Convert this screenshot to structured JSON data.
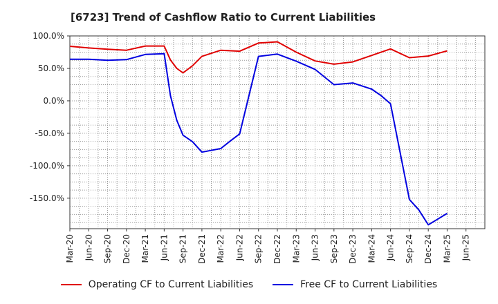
{
  "chart_data": {
    "type": "line",
    "title": "[6723]  Trend of Cashflow Ratio to Current Liabilities",
    "x_tick_labels": [
      "Mar-20",
      "Jun-20",
      "Sep-20",
      "Dec-20",
      "Mar-21",
      "Jun-21",
      "Sep-21",
      "Dec-21",
      "Mar-22",
      "Jun-22",
      "Sep-22",
      "Dec-22",
      "Mar-23",
      "Jun-23",
      "Sep-23",
      "Dec-23",
      "Mar-24",
      "Jun-24",
      "Sep-24",
      "Dec-24",
      "Mar-25",
      "Jun-25"
    ],
    "y_tick_values": [
      100,
      50,
      0,
      -50,
      -100,
      -150
    ],
    "y_tick_labels": [
      "100.0%",
      "50.0%",
      "0.0%",
      "-50.0%",
      "-100.0%",
      "-150.0%"
    ],
    "ylim": [
      -197,
      100
    ],
    "y_format": "percent",
    "grid": true,
    "legend_position": "bottom",
    "series": [
      {
        "name": "Operating CF to Current Liabilities",
        "color": "#e00000",
        "points": [
          [
            0,
            84
          ],
          [
            1,
            81.5
          ],
          [
            2,
            79.5
          ],
          [
            3,
            78
          ],
          [
            4,
            84.5
          ],
          [
            5,
            84.5
          ],
          [
            5.33,
            63
          ],
          [
            5.67,
            50
          ],
          [
            6,
            43
          ],
          [
            6.5,
            54
          ],
          [
            7,
            68.5
          ],
          [
            8,
            78
          ],
          [
            9,
            76.5
          ],
          [
            10,
            89
          ],
          [
            11,
            91
          ],
          [
            12,
            75
          ],
          [
            13,
            61.5
          ],
          [
            14,
            56.5
          ],
          [
            15,
            60
          ],
          [
            16,
            70
          ],
          [
            17,
            80
          ],
          [
            18,
            66.5
          ],
          [
            19,
            69
          ],
          [
            20,
            77
          ]
        ]
      },
      {
        "name": "Free CF to Current Liabilities",
        "color": "#0000e0",
        "points": [
          [
            0,
            64
          ],
          [
            1,
            64
          ],
          [
            2,
            62.5
          ],
          [
            3,
            63.5
          ],
          [
            4,
            71.5
          ],
          [
            5,
            72.5
          ],
          [
            5.33,
            8
          ],
          [
            5.67,
            -30
          ],
          [
            6,
            -53
          ],
          [
            6.5,
            -63
          ],
          [
            7,
            -79
          ],
          [
            8,
            -73.5
          ],
          [
            8.5,
            -62
          ],
          [
            9,
            -51
          ],
          [
            10,
            68.5
          ],
          [
            11,
            72
          ],
          [
            12,
            61
          ],
          [
            13,
            48.5
          ],
          [
            14,
            25
          ],
          [
            15,
            27.5
          ],
          [
            16,
            18
          ],
          [
            16.5,
            8
          ],
          [
            17,
            -4.5
          ],
          [
            18,
            -152
          ],
          [
            18.5,
            -168
          ],
          [
            19,
            -191
          ],
          [
            20,
            -173.5
          ]
        ]
      }
    ]
  }
}
